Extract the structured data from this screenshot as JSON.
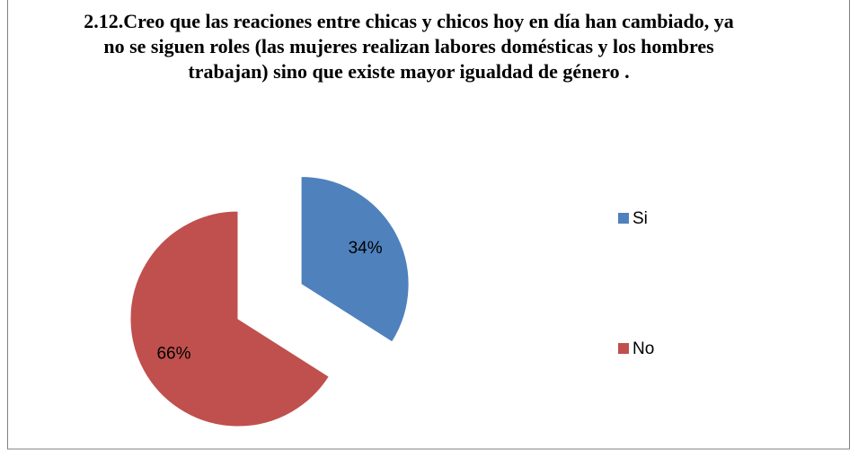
{
  "chart_data": {
    "type": "pie",
    "title": "2.12.Creo que las reaciones entre chicas y chicos hoy en día han cambiado, ya no se siguen roles (las mujeres realizan labores domésticas y los hombres trabajan) sino que existe mayor igualdad de género .",
    "categories": [
      "Si",
      "No"
    ],
    "values": [
      34,
      66
    ],
    "value_labels": [
      "34%",
      "66%"
    ],
    "colors": [
      "#4f81bd",
      "#c0504d"
    ],
    "explode": [
      true,
      false
    ],
    "legend": "right"
  }
}
